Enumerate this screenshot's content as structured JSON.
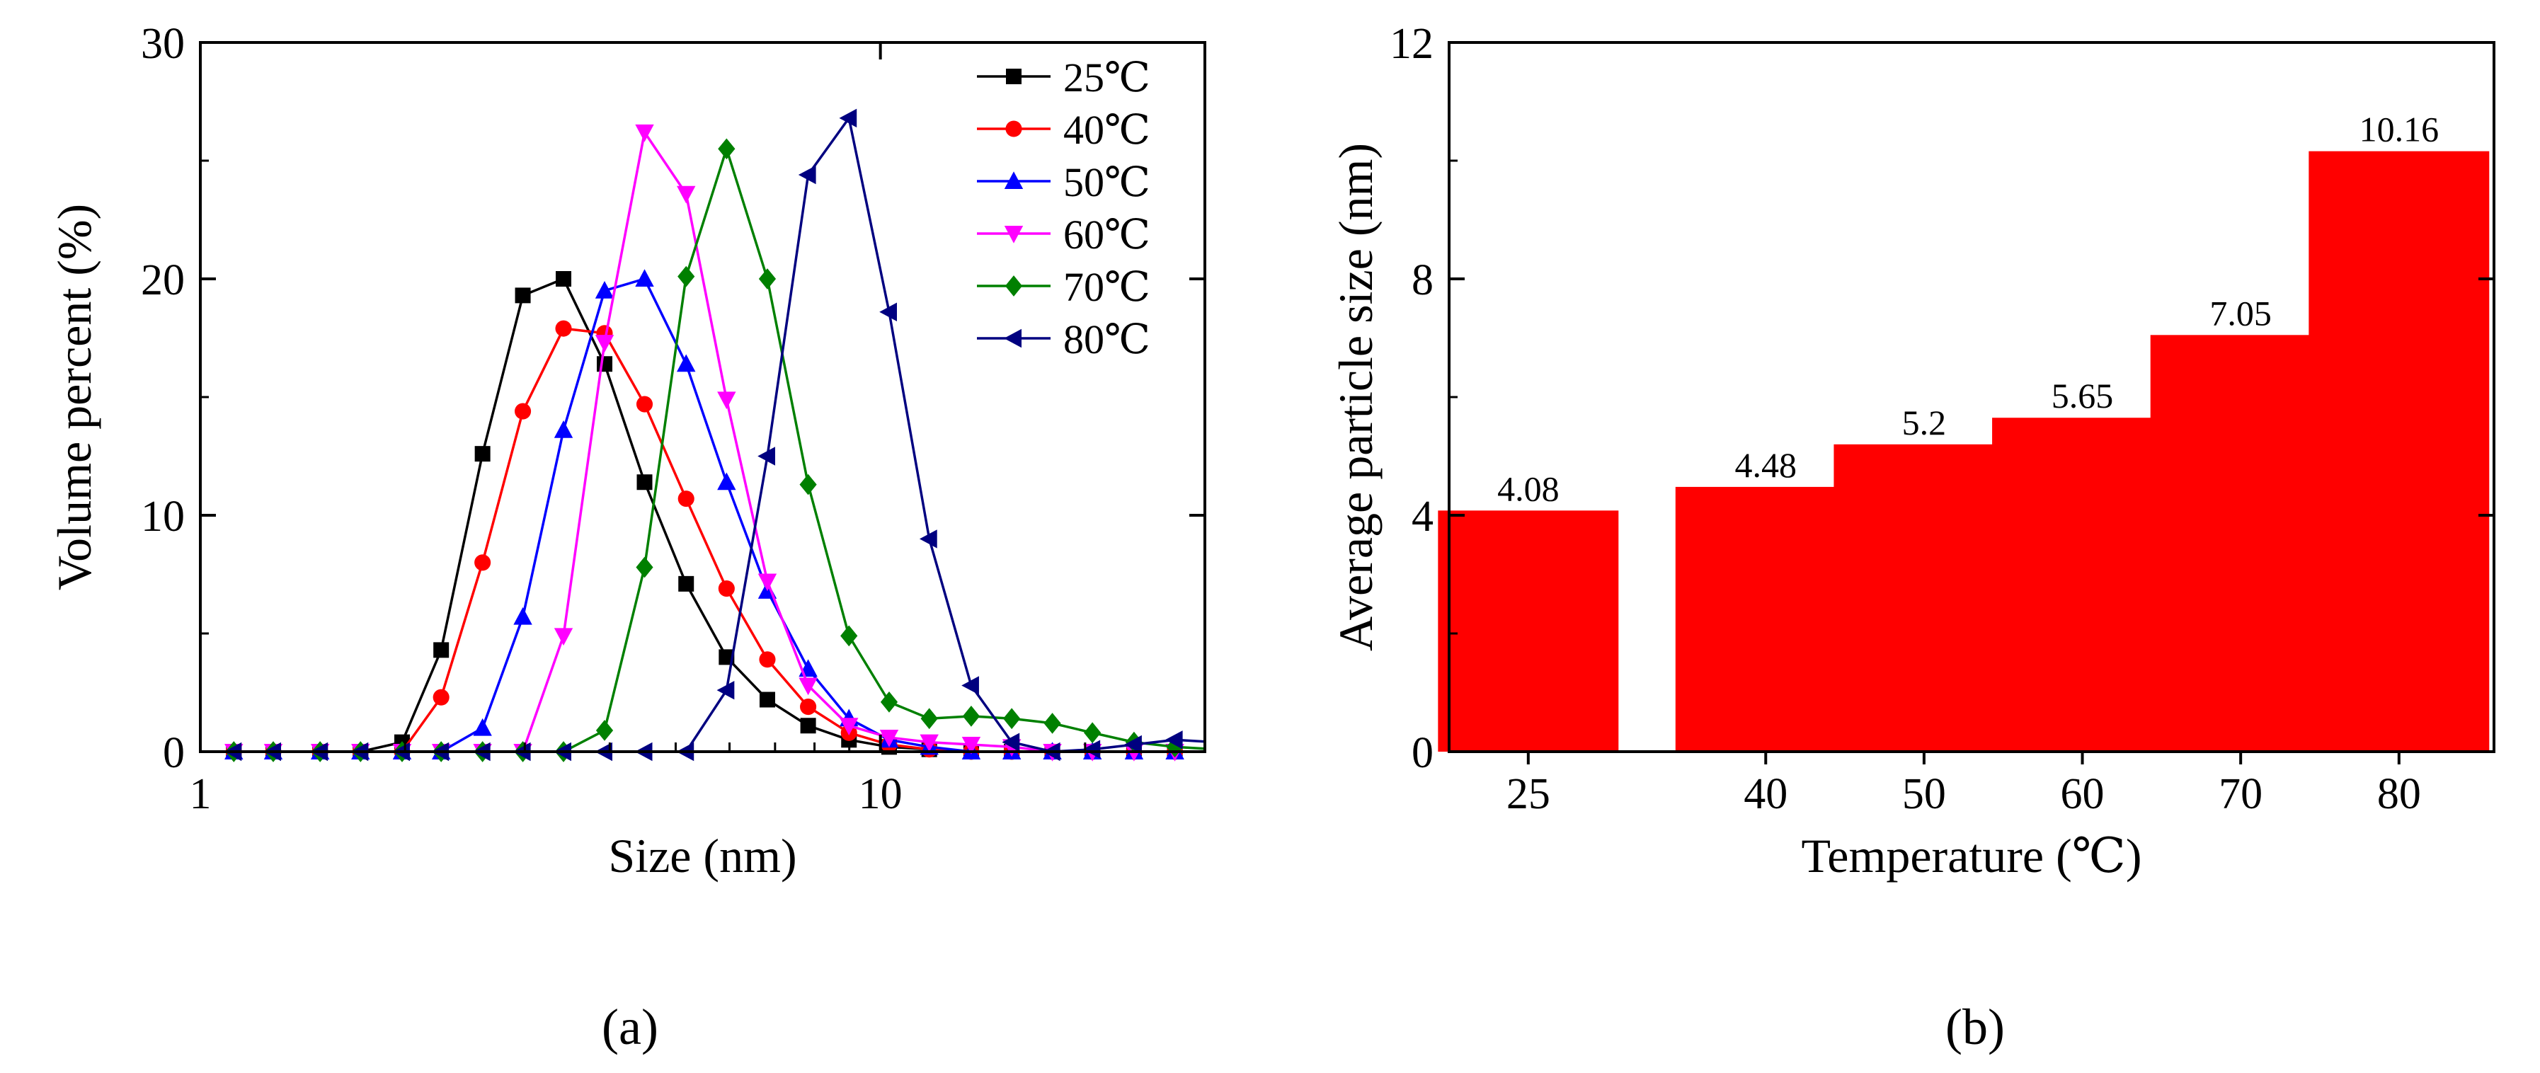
{
  "figure": {
    "panel_a_label": "(a)",
    "panel_b_label": "(b)"
  },
  "chart_data": [
    {
      "type": "line",
      "xlabel": "Size (nm)",
      "ylabel": "Volume percent (%)",
      "xscale": "log",
      "xlim": [
        1,
        30
      ],
      "ylim": [
        0,
        30
      ],
      "xticks": [
        1,
        10
      ],
      "xtick_labels": [
        "1",
        "10"
      ],
      "yticks": [
        0,
        10,
        20,
        30
      ],
      "ytick_labels": [
        "0",
        "10",
        "20",
        "30"
      ],
      "legend": "top-right",
      "x": [
        1.12,
        1.28,
        1.5,
        1.72,
        1.98,
        2.26,
        2.6,
        2.98,
        3.42,
        3.93,
        4.5,
        5.18,
        5.94,
        6.82,
        7.83,
        8.99,
        10.3,
        11.8,
        13.6,
        15.6,
        17.9,
        20.5,
        23.6,
        27.1,
        31.1
      ],
      "series": [
        {
          "name": "25℃",
          "color": "#000000",
          "marker": "square",
          "values": [
            0,
            0,
            0,
            0,
            0.4,
            4.3,
            12.6,
            19.3,
            20.0,
            16.4,
            11.4,
            7.1,
            4.0,
            2.2,
            1.1,
            0.5,
            0.2,
            0.1,
            0,
            0,
            0,
            0,
            0,
            0,
            0
          ]
        },
        {
          "name": "40℃",
          "color": "#ff0000",
          "marker": "circle",
          "values": [
            0,
            0,
            0,
            0,
            0,
            2.3,
            8.0,
            14.4,
            17.9,
            17.7,
            14.7,
            10.7,
            6.9,
            3.9,
            1.9,
            0.8,
            0.3,
            0.1,
            0,
            0,
            0,
            0,
            0,
            0,
            0
          ]
        },
        {
          "name": "50℃",
          "color": "#0000ff",
          "marker": "triangle-up",
          "values": [
            0,
            0,
            0,
            0,
            0,
            0,
            1.0,
            5.7,
            13.6,
            19.5,
            20.0,
            16.4,
            11.4,
            6.8,
            3.5,
            1.4,
            0.5,
            0.2,
            0,
            0,
            0,
            0,
            0,
            0,
            0
          ]
        },
        {
          "name": "60℃",
          "color": "#ff00ff",
          "marker": "triangle-down",
          "values": [
            0,
            0,
            0,
            0,
            0,
            0,
            0,
            0,
            4.9,
            17.3,
            26.2,
            23.6,
            14.9,
            7.2,
            2.8,
            1.1,
            0.6,
            0.4,
            0.3,
            0.2,
            0,
            0,
            0,
            0,
            0
          ]
        },
        {
          "name": "70℃",
          "color": "#008000",
          "marker": "diamond",
          "values": [
            0,
            0,
            0,
            0,
            0,
            0,
            0,
            0,
            0,
            0.9,
            7.8,
            20.1,
            25.5,
            20.0,
            11.3,
            4.9,
            2.1,
            1.4,
            1.5,
            1.4,
            1.2,
            0.8,
            0.4,
            0.2,
            0.1
          ]
        },
        {
          "name": "80℃",
          "color": "#000080",
          "marker": "triangle-left",
          "values": [
            0,
            0,
            0,
            0,
            0,
            0,
            0,
            0,
            0,
            0,
            0,
            0,
            2.6,
            12.5,
            24.4,
            26.8,
            18.6,
            9.0,
            2.8,
            0.4,
            0,
            0.1,
            0.3,
            0.5,
            0.4
          ]
        }
      ]
    },
    {
      "type": "bar",
      "xlabel": "Temperature (℃)",
      "ylabel": "Average particle size (nm)",
      "ylim": [
        0,
        12
      ],
      "yticks": [
        0,
        4,
        8,
        12
      ],
      "ytick_labels": [
        "0",
        "4",
        "8",
        "12"
      ],
      "bar_color": "#ff0000",
      "categories": [
        "25",
        "40",
        "50",
        "60",
        "70",
        "80"
      ],
      "x_positions": [
        25,
        40,
        50,
        60,
        70,
        80
      ],
      "xlim": [
        20,
        86
      ],
      "values": [
        4.08,
        4.48,
        5.2,
        5.65,
        7.05,
        10.16
      ],
      "value_labels": [
        "4.08",
        "4.48",
        "5.2",
        "5.65",
        "7.05",
        "10.16"
      ]
    }
  ]
}
